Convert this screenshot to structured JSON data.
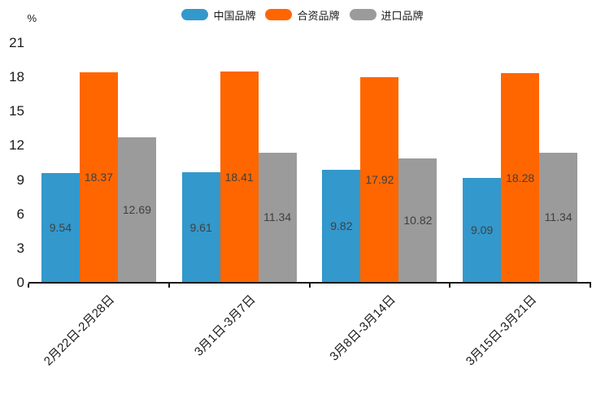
{
  "chart_data": {
    "type": "bar",
    "title": "",
    "unit_label": "%",
    "categories": [
      "2月22日-2月28日",
      "3月1日-3月7日",
      "3月8日-3月14日",
      "3月15日-3月21日"
    ],
    "series": [
      {
        "name": "中国品牌",
        "color": "#3398CC",
        "values": [
          9.54,
          9.61,
          9.82,
          9.09
        ]
      },
      {
        "name": "合资品牌",
        "color": "#FF6600",
        "values": [
          18.37,
          18.41,
          17.92,
          18.28
        ]
      },
      {
        "name": "进口品牌",
        "color": "#9B9B9B",
        "values": [
          12.69,
          11.34,
          10.82,
          11.34
        ]
      }
    ],
    "y_ticks": [
      0,
      3,
      6,
      9,
      12,
      15,
      18,
      21
    ],
    "ylim": [
      0,
      21
    ],
    "grid": false,
    "legend_position": "top-center",
    "value_labels": "inside-center",
    "x_label_rotation_deg": 45
  }
}
